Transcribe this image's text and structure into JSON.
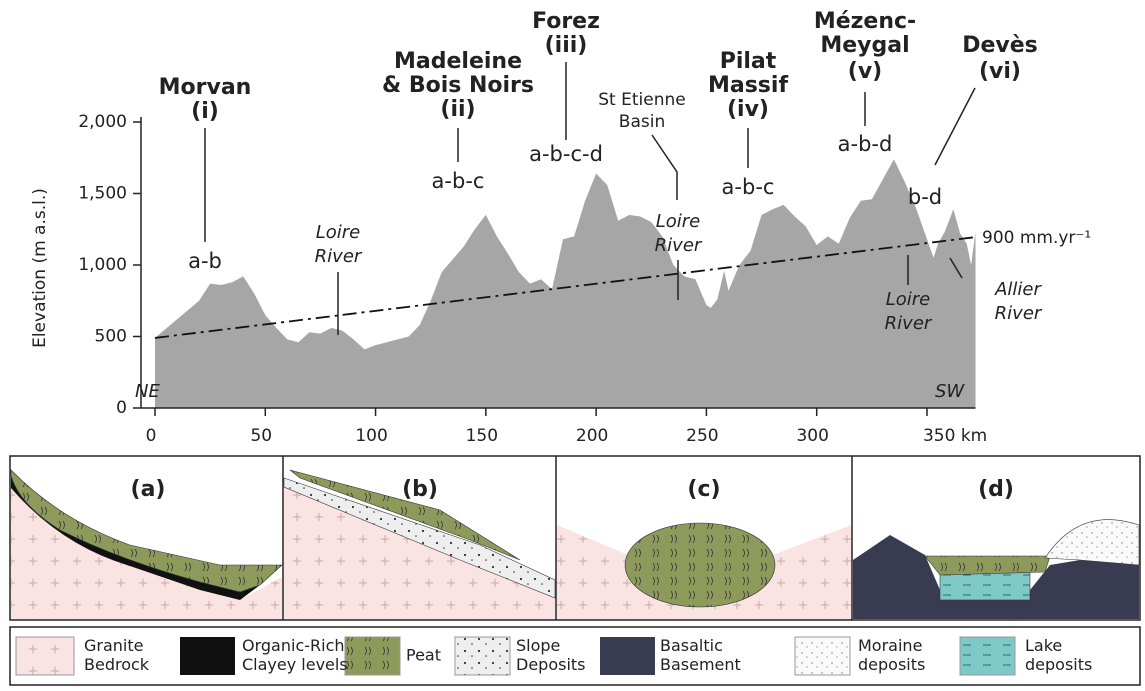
{
  "chart_data": {
    "type": "area",
    "y_label": "Elevation (m a.s.l.)",
    "color": "#a6a6a6",
    "x": [
      0,
      10,
      20,
      25,
      30,
      35,
      40,
      45,
      50,
      55,
      60,
      65,
      70,
      75,
      80,
      85,
      90,
      95,
      100,
      110,
      115,
      120,
      125,
      130,
      135,
      140,
      145,
      150,
      155,
      160,
      165,
      170,
      175,
      180,
      185,
      190,
      195,
      200,
      205,
      210,
      215,
      220,
      225,
      230,
      235,
      240,
      245,
      250,
      252,
      255,
      258,
      260,
      265,
      270,
      275,
      280,
      285,
      290,
      295,
      300,
      305,
      310,
      315,
      320,
      325,
      330,
      335,
      340,
      345,
      350,
      353,
      355,
      358,
      362,
      365,
      368,
      370,
      372
    ],
    "values": [
      490,
      620,
      750,
      870,
      860,
      880,
      920,
      800,
      650,
      560,
      480,
      460,
      530,
      520,
      560,
      540,
      480,
      410,
      440,
      480,
      500,
      580,
      750,
      950,
      1040,
      1130,
      1250,
      1350,
      1200,
      1080,
      950,
      870,
      900,
      830,
      1180,
      1200,
      1450,
      1640,
      1560,
      1310,
      1350,
      1340,
      1300,
      1200,
      1000,
      920,
      900,
      720,
      700,
      760,
      960,
      820,
      1000,
      1100,
      1350,
      1390,
      1420,
      1340,
      1270,
      1140,
      1200,
      1150,
      1330,
      1450,
      1460,
      1600,
      1740,
      1580,
      1400,
      1180,
      1050,
      1150,
      1230,
      1390,
      1220,
      1150,
      1000,
      1230
    ],
    "xlim": [
      0,
      372
    ],
    "xticks": [
      0,
      50,
      100,
      150,
      200,
      250,
      300,
      {
        "value": 350,
        "label": "350 km"
      }
    ],
    "ylim": [
      0,
      2000
    ],
    "yticks": [
      0,
      500,
      {
        "value": 1000,
        "label": "1,000"
      },
      {
        "value": 1500,
        "label": "1,500"
      },
      {
        "value": 2000,
        "label": "2,000"
      }
    ],
    "trend_line": {
      "x": [
        0,
        372
      ],
      "values": [
        490,
        1195
      ],
      "label": "900 mm.yr⁻¹"
    },
    "massifs": [
      {
        "name_lines": [
          "Morvan"
        ],
        "numeral": "(i)",
        "codes": "a-b"
      },
      {
        "name_lines": [
          "Madeleine",
          "& Bois Noirs"
        ],
        "numeral": "(ii)",
        "codes": "a-b-c"
      },
      {
        "name_lines": [
          "Forez"
        ],
        "numeral": "(iii)",
        "codes": "a-b-c-d"
      },
      {
        "name_lines": [
          "Pilat",
          "Massif"
        ],
        "numeral": "(iv)",
        "codes": "a-b-c"
      },
      {
        "name_lines": [
          "Mézenc-",
          "Meygal"
        ],
        "numeral": "(v)",
        "codes": "a-b-d"
      },
      {
        "name_lines": [
          "Devès"
        ],
        "numeral": "(vi)",
        "codes": "b-d"
      }
    ],
    "rivers": [
      [
        "Loire",
        "River"
      ],
      [
        "Loire",
        "River"
      ],
      [
        "Loire",
        "River"
      ],
      [
        "Allier",
        "River"
      ]
    ],
    "basin": [
      "St Etienne",
      "Basin"
    ],
    "ends": [
      "NE",
      "SW"
    ]
  },
  "panels": [
    {
      "label": "(a)"
    },
    {
      "label": "(b)"
    },
    {
      "label": "(c)"
    },
    {
      "label": "(d)"
    }
  ],
  "legend": [
    {
      "lines": [
        "Granite",
        "Bedrock"
      ]
    },
    {
      "lines": [
        "Organic-Rich",
        "Clayey levels"
      ]
    },
    {
      "lines": [
        "Peat"
      ]
    },
    {
      "lines": [
        "Slope",
        "Deposits"
      ]
    },
    {
      "lines": [
        "Basaltic",
        "Basement"
      ]
    },
    {
      "lines": [
        "Moraine",
        "deposits"
      ]
    },
    {
      "lines": [
        "Lake",
        "deposits"
      ]
    }
  ]
}
